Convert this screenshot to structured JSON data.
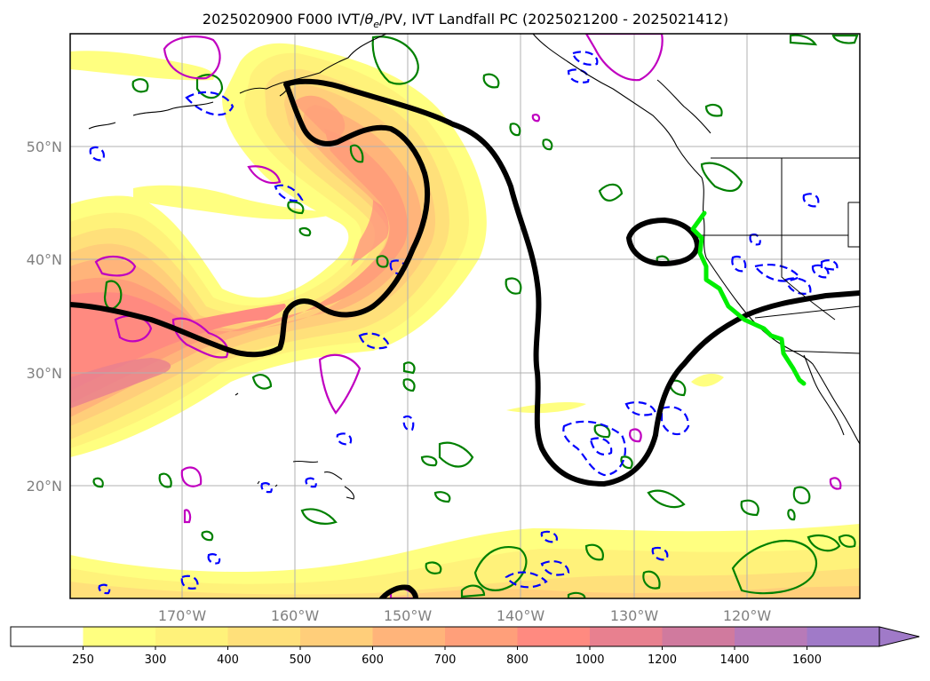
{
  "title_prefix": "2025020900 F000 IVT/",
  "title_theta": "θ",
  "title_sub": "e",
  "title_suffix": "/PV, IVT Landfall PC (2025021200 - 2025021412)",
  "lon_labels": [
    "170°W",
    "160°W",
    "150°W",
    "140°W",
    "130°W",
    "120°W"
  ],
  "lat_labels": [
    "50°N",
    "40°N",
    "30°N",
    "20°N"
  ],
  "colorbar": {
    "ticks": [
      "250",
      "300",
      "400",
      "500",
      "600",
      "700",
      "800",
      "1000",
      "1200",
      "1400",
      "1600"
    ],
    "colors": [
      "#ffffff",
      "#ffff80",
      "#fff27a",
      "#ffe07a",
      "#ffce7a",
      "#ffb47a",
      "#ff9f7a",
      "#ff8a80",
      "#e8808f",
      "#d07a9e",
      "#b77ab8",
      "#a07ac8"
    ],
    "extend": "max"
  },
  "legend_colors": {
    "ivt_cont": "#000000",
    "theta_e": "#008000",
    "pv_pos": "#c000c0",
    "pv_neg": "#0000ff",
    "landfall": "#00ee00",
    "coast": "#000000"
  }
}
